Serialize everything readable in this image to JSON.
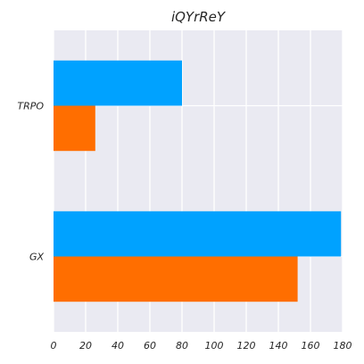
{
  "chart_data": {
    "type": "bar",
    "orientation": "horizontal",
    "title": "iQYrReY",
    "xlabel": "",
    "ylabel": "",
    "categories": [
      "TRPO",
      "GX"
    ],
    "series": [
      {
        "values": [
          80,
          179
        ],
        "color": "#00a2ff"
      },
      {
        "values": [
          26,
          152
        ],
        "color": "#ff6e00"
      }
    ],
    "xlim": [
      0,
      180
    ],
    "xticks": [
      0,
      20,
      40,
      60,
      80,
      100,
      120,
      140,
      160,
      180
    ],
    "grid": true,
    "legend": "none",
    "background": "#eaeaf2"
  }
}
